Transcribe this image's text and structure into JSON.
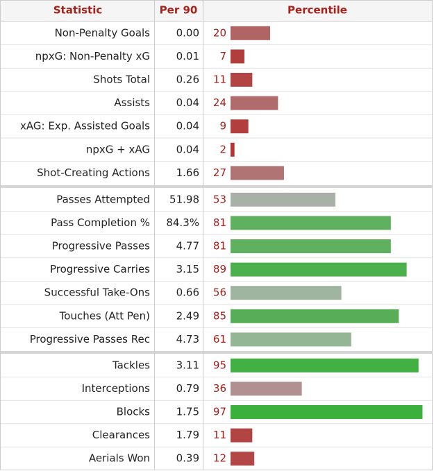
{
  "table": {
    "headers": [
      "Statistic",
      "Per 90",
      "Percentile"
    ],
    "groups": [
      {
        "rows": [
          {
            "statistic": "Non-Penalty Goals",
            "per90": "0.00",
            "percentile": 20,
            "color": "#b06464"
          },
          {
            "statistic": "npxG: Non-Penalty xG",
            "per90": "0.01",
            "percentile": 7,
            "color": "#b33c3c"
          },
          {
            "statistic": "Shots Total",
            "per90": "0.26",
            "percentile": 11,
            "color": "#b34444"
          },
          {
            "statistic": "Assists",
            "per90": "0.04",
            "percentile": 24,
            "color": "#b06c6c"
          },
          {
            "statistic": "xAG: Exp. Assisted Goals",
            "per90": "0.04",
            "percentile": 9,
            "color": "#b33e3e"
          },
          {
            "statistic": "npxG + xAG",
            "per90": "0.04",
            "percentile": 2,
            "color": "#b53434"
          },
          {
            "statistic": "Shot-Creating Actions",
            "per90": "1.66",
            "percentile": 27,
            "color": "#b07474"
          }
        ]
      },
      {
        "rows": [
          {
            "statistic": "Passes Attempted",
            "per90": "51.98",
            "percentile": 53,
            "color": "#a8b0a8"
          },
          {
            "statistic": "Pass Completion %",
            "per90": "84.3%",
            "percentile": 81,
            "color": "#5fb05f"
          },
          {
            "statistic": "Progressive Passes",
            "per90": "4.77",
            "percentile": 81,
            "color": "#5fb05f"
          },
          {
            "statistic": "Progressive Carries",
            "per90": "3.15",
            "percentile": 89,
            "color": "#4cb04c"
          },
          {
            "statistic": "Successful Take-Ons",
            "per90": "0.66",
            "percentile": 56,
            "color": "#a0b5a0"
          },
          {
            "statistic": "Touches (Att Pen)",
            "per90": "2.49",
            "percentile": 85,
            "color": "#58ae58"
          },
          {
            "statistic": "Progressive Passes Rec",
            "per90": "4.73",
            "percentile": 61,
            "color": "#94b694"
          }
        ]
      },
      {
        "rows": [
          {
            "statistic": "Tackles",
            "per90": "3.11",
            "percentile": 95,
            "color": "#42b042"
          },
          {
            "statistic": "Interceptions",
            "per90": "0.79",
            "percentile": 36,
            "color": "#b09090"
          },
          {
            "statistic": "Blocks",
            "per90": "1.75",
            "percentile": 97,
            "color": "#3cb03c"
          },
          {
            "statistic": "Clearances",
            "per90": "1.79",
            "percentile": 11,
            "color": "#b34444"
          },
          {
            "statistic": "Aerials Won",
            "per90": "0.39",
            "percentile": 12,
            "color": "#b34646"
          }
        ]
      }
    ]
  }
}
